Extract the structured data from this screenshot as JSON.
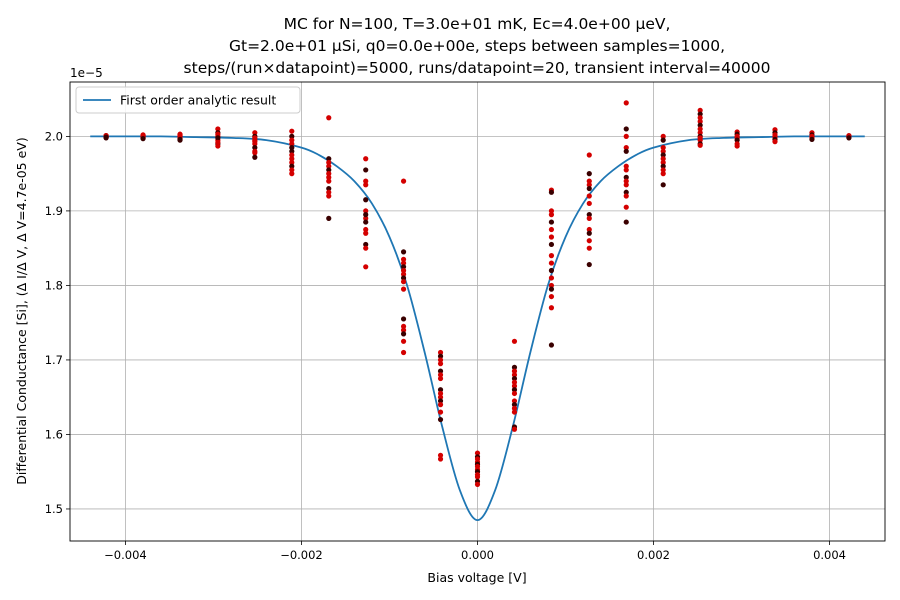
{
  "chart_data": {
    "type": "scatter",
    "title_lines": [
      "MC for N=100, T=3.0e+01 mK, Ec=4.0e+00 μeV,",
      "Gt=2.0e+01 μSi, q0=0.0e+00e, steps between samples=1000,",
      "steps/(run×datapoint)=5000, runs/datapoint=20, transient interval=40000"
    ],
    "xlabel": "Bias voltage [V]",
    "ylabel": "Differential Conductance [Si], (Δ I/Δ V, Δ V=4.7e-05 eV)",
    "y_offset_label": "1e−5",
    "xlim": [
      -0.00463,
      0.00463
    ],
    "ylim": [
      1.457,
      2.073
    ],
    "y_scale": 1e-05,
    "x_ticks": [
      -0.004,
      -0.002,
      0,
      0.002,
      0.004
    ],
    "x_tick_labels": [
      "−0.004",
      "−0.002",
      "0.000",
      "0.002",
      "0.004"
    ],
    "y_ticks": [
      1.5,
      1.6,
      1.7,
      1.8,
      1.9,
      2.0
    ],
    "y_tick_labels": [
      "1.5",
      "1.6",
      "1.7",
      "1.8",
      "1.9",
      "2.0"
    ],
    "grid": true,
    "legend": {
      "position": "top-left",
      "entries": [
        "First order analytic result"
      ]
    },
    "colors": {
      "curve": "#1f77b4",
      "point_a": "#d40000",
      "point_b": "#3a0000"
    },
    "analytic_curve": {
      "name": "First order analytic result",
      "x": [
        -0.0044,
        -0.004,
        -0.0036,
        -0.0032,
        -0.0028,
        -0.0024,
        -0.002,
        -0.0018,
        -0.0016,
        -0.0014,
        -0.0012,
        -0.001,
        -0.0008,
        -0.0006,
        -0.0004,
        -0.0002,
        0,
        0.0002,
        0.0004,
        0.0006,
        0.0008,
        0.001,
        0.0012,
        0.0014,
        0.0016,
        0.0018,
        0.002,
        0.0024,
        0.0028,
        0.0032,
        0.0036,
        0.004,
        0.0044
      ],
      "y": [
        2.0,
        2.0,
        2.0,
        1.999,
        1.998,
        1.995,
        1.985,
        1.975,
        1.96,
        1.94,
        1.91,
        1.865,
        1.8,
        1.71,
        1.61,
        1.525,
        1.485,
        1.525,
        1.61,
        1.71,
        1.8,
        1.865,
        1.91,
        1.94,
        1.96,
        1.975,
        1.985,
        1.995,
        1.998,
        1.999,
        2.0,
        2.0,
        2.0
      ]
    },
    "mc_samples": [
      {
        "x": -0.00422,
        "y": [
          2.0,
          2.001,
          1.999,
          2.0,
          1.998,
          2.0,
          2.001,
          1.999
        ]
      },
      {
        "x": -0.0038,
        "y": [
          2.001,
          2.0,
          1.998,
          2.002,
          1.999,
          2.0,
          2.001,
          1.997
        ]
      },
      {
        "x": -0.00338,
        "y": [
          2.002,
          2.0,
          1.997,
          2.003,
          1.995,
          2.001,
          1.999,
          1.996
        ]
      },
      {
        "x": -0.00295,
        "y": [
          2.01,
          2.005,
          2.0,
          1.995,
          1.99,
          1.987,
          2.003,
          1.998,
          1.992
        ]
      },
      {
        "x": -0.00253,
        "y": [
          2.005,
          2.0,
          1.995,
          1.99,
          1.985,
          1.98,
          1.978,
          1.972,
          1.998,
          1.993
        ]
      },
      {
        "x": -0.00211,
        "y": [
          2.007,
          2.0,
          1.995,
          1.99,
          1.98,
          1.97,
          1.965,
          1.96,
          1.955,
          1.95,
          1.985,
          1.975
        ]
      },
      {
        "x": -0.00169,
        "y": [
          2.025,
          1.97,
          1.965,
          1.96,
          1.955,
          1.95,
          1.945,
          1.93,
          1.925,
          1.92,
          1.89,
          1.94
        ]
      },
      {
        "x": -0.00127,
        "y": [
          1.97,
          1.955,
          1.94,
          1.935,
          1.915,
          1.9,
          1.89,
          1.885,
          1.875,
          1.87,
          1.855,
          1.85,
          1.825,
          1.895
        ]
      },
      {
        "x": -0.00084,
        "y": [
          1.94,
          1.845,
          1.835,
          1.83,
          1.825,
          1.82,
          1.815,
          1.81,
          1.805,
          1.795,
          1.755,
          1.745,
          1.74,
          1.735,
          1.725,
          1.71
        ]
      },
      {
        "x": -0.00042,
        "y": [
          1.71,
          1.705,
          1.7,
          1.695,
          1.685,
          1.68,
          1.675,
          1.66,
          1.655,
          1.65,
          1.645,
          1.64,
          1.63,
          1.62,
          1.572,
          1.567
        ]
      },
      {
        "x": 0.0,
        "y": [
          1.575,
          1.57,
          1.567,
          1.563,
          1.56,
          1.557,
          1.553,
          1.55,
          1.546,
          1.543,
          1.537,
          1.533
        ]
      },
      {
        "x": 0.00042,
        "y": [
          1.725,
          1.69,
          1.685,
          1.68,
          1.675,
          1.67,
          1.665,
          1.66,
          1.655,
          1.645,
          1.64,
          1.635,
          1.63,
          1.61,
          1.607
        ]
      },
      {
        "x": 0.00084,
        "y": [
          1.928,
          1.925,
          1.9,
          1.895,
          1.885,
          1.875,
          1.865,
          1.855,
          1.84,
          1.83,
          1.82,
          1.81,
          1.8,
          1.795,
          1.785,
          1.77,
          1.72
        ]
      },
      {
        "x": 0.00127,
        "y": [
          1.975,
          1.95,
          1.94,
          1.935,
          1.93,
          1.92,
          1.91,
          1.895,
          1.89,
          1.875,
          1.87,
          1.86,
          1.85,
          1.828
        ]
      },
      {
        "x": 0.00169,
        "y": [
          2.045,
          2.01,
          2.0,
          1.985,
          1.98,
          1.96,
          1.955,
          1.945,
          1.94,
          1.935,
          1.925,
          1.92,
          1.905,
          1.885
        ]
      },
      {
        "x": 0.00211,
        "y": [
          2.0,
          1.995,
          1.985,
          1.98,
          1.975,
          1.97,
          1.965,
          1.96,
          1.955,
          1.95,
          1.935
        ]
      },
      {
        "x": 0.00253,
        "y": [
          2.035,
          2.03,
          2.025,
          2.02,
          2.015,
          2.01,
          2.005,
          2.0,
          1.998,
          1.995,
          1.99,
          1.988
        ]
      },
      {
        "x": 0.00295,
        "y": [
          2.006,
          2.003,
          2.0,
          1.998,
          1.995,
          1.99,
          1.987
        ]
      },
      {
        "x": 0.00338,
        "y": [
          2.009,
          2.005,
          2.002,
          1.999,
          1.996,
          1.993
        ]
      },
      {
        "x": 0.0038,
        "y": [
          2.005,
          2.002,
          2.0,
          1.998,
          1.996
        ]
      },
      {
        "x": 0.00422,
        "y": [
          2.001,
          2.0,
          1.999,
          2.0,
          1.998
        ]
      }
    ]
  }
}
